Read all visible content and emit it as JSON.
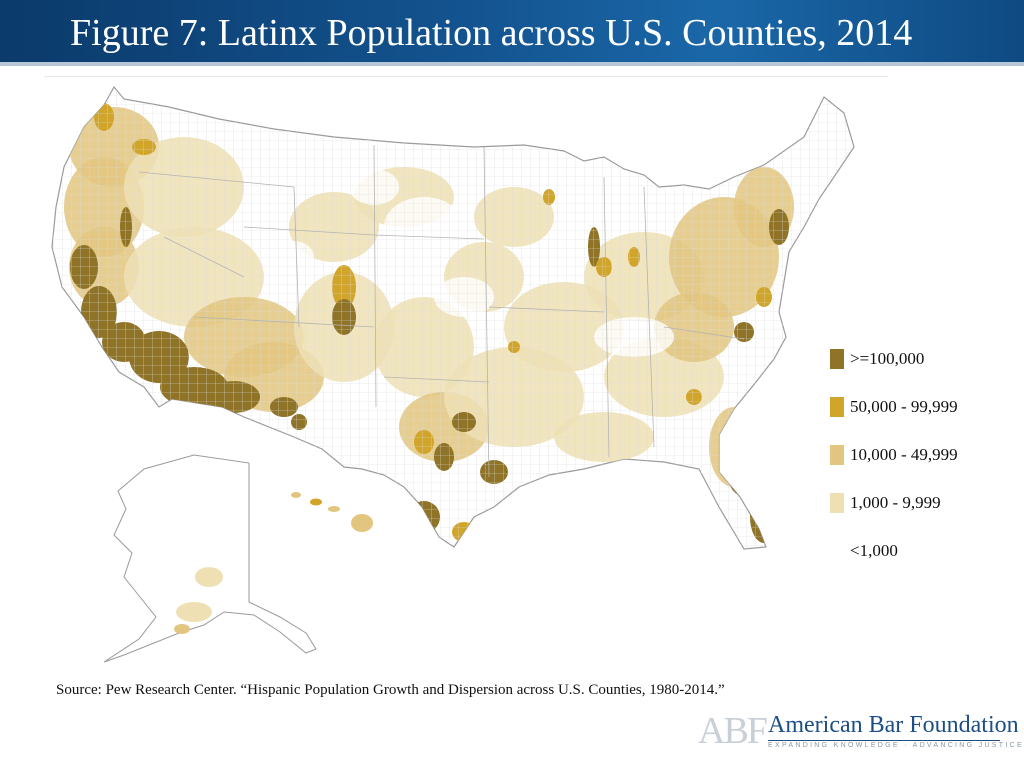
{
  "slide": {
    "title": "Figure 7: Latinx Population across U.S. Counties, 2014",
    "source": "Source: Pew Research Center. “Hispanic Population Growth and Dispersion across U.S. Counties, 1980-2014.”"
  },
  "legend": [
    {
      "label": ">=100,000",
      "color": "#8f7327"
    },
    {
      "label": "50,000 - 99,999",
      "color": "#d1a52a"
    },
    {
      "label": "10,000 - 49,999",
      "color": "#e2c57f"
    },
    {
      "label": "1,000 - 9,999",
      "color": "#efe0b4"
    },
    {
      "label": "<1,000",
      "color": "#ffffff"
    }
  ],
  "map": {
    "outline_color": "#9a9a9a",
    "county_line_color": "#d8d8d8"
  },
  "logo": {
    "mark": "ABF",
    "name": "American Bar Foundation",
    "tagline": "EXPANDING KNOWLEDGE · ADVANCING JUSTICE"
  }
}
